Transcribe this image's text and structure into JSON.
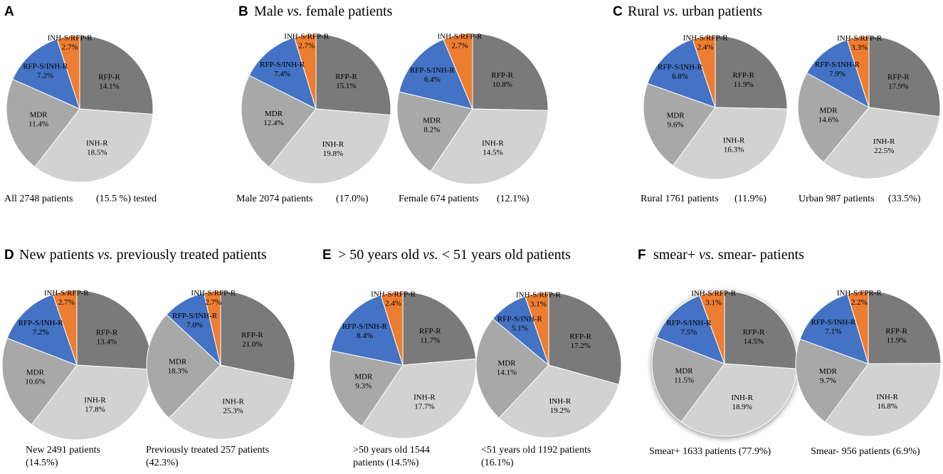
{
  "chart_data": {
    "type": "pie",
    "categories": [
      "RFP-R",
      "INH-R",
      "MDR",
      "RFP-S/INH-R",
      "INH-S/RFP-R"
    ],
    "colors": {
      "RFP-R": "#7a7a7a",
      "INH-R": "#d2d2d2",
      "MDR": "#a8a8a8",
      "RFP-S/INH-R": "#4472c4",
      "INH-S/RFP-R": "#ed7d31"
    },
    "panels": [
      {
        "letter": "A",
        "title_parts": [],
        "pies": [
          {
            "caption_lines": [
              "All 2748 patients",
              "(15.5 %) tested"
            ],
            "slices": [
              {
                "name": "RFP-R",
                "label": "RFP-R",
                "value": "14.1%"
              },
              {
                "name": "INH-R",
                "label": "INH-R",
                "value": "18.5%"
              },
              {
                "name": "MDR",
                "label": "MDR",
                "value": "11.4%"
              },
              {
                "name": "RFP-S/INH-R",
                "label": "RFP-S/INH-R",
                "value": "7.2%"
              },
              {
                "name": "INH-S/RFP-R",
                "label": "INH-S/RFP-R",
                "value": "2.7%"
              }
            ]
          }
        ]
      },
      {
        "letter": "B",
        "title_parts": [
          "Male ",
          "vs.",
          " female patients"
        ],
        "pies": [
          {
            "caption_lines": [
              "Male 2074 patients",
              "(17.0%)"
            ],
            "slices": [
              {
                "name": "RFP-R",
                "label": "RFP-R",
                "value": "15.1%"
              },
              {
                "name": "INH-R",
                "label": "INH-R",
                "value": "19.8%"
              },
              {
                "name": "MDR",
                "label": "MDR",
                "value": "12.4%"
              },
              {
                "name": "RFP-S/INH-R",
                "label": "RFP-S/INH-R",
                "value": "7.4%"
              },
              {
                "name": "INH-S/RFP-R",
                "label": "INH-S/RFP-R",
                "value": "2.7%"
              }
            ]
          },
          {
            "caption_lines": [
              "Female 674 patients",
              "(12.1%)"
            ],
            "slices": [
              {
                "name": "RFP-R",
                "label": "RFP-R",
                "value": "10.8%"
              },
              {
                "name": "INH-R",
                "label": "INH-R",
                "value": "14.5%"
              },
              {
                "name": "MDR",
                "label": "MDR",
                "value": "8.2%"
              },
              {
                "name": "RFP-S/INH-R",
                "label": "RFP-S/INH-R",
                "value": "6.4%"
              },
              {
                "name": "INH-S/RFP-R",
                "label": "INH-S/RFP-R",
                "value": "2.7%"
              }
            ]
          }
        ]
      },
      {
        "letter": "C",
        "title_parts": [
          "Rural ",
          "vs.",
          " urban patients"
        ],
        "pies": [
          {
            "caption_lines": [
              "Rural 1761 patients",
              "(11.9%)"
            ],
            "slices": [
              {
                "name": "RFP-R",
                "label": "RFP-R",
                "value": "11.9%"
              },
              {
                "name": "INH-R",
                "label": "INH-R",
                "value": "16.3%"
              },
              {
                "name": "MDR",
                "label": "MDR",
                "value": "9.6%"
              },
              {
                "name": "RFP-S/INH-R",
                "label": "RFP-S/INH-R",
                "value": "6.8%"
              },
              {
                "name": "INH-S/RFP-R",
                "label": "INH-S/RFP-R",
                "value": "2.4%"
              }
            ]
          },
          {
            "caption_lines": [
              "Urban 987 patients",
              "(33.5%)"
            ],
            "slices": [
              {
                "name": "RFP-R",
                "label": "RFP-R",
                "value": "17.9%"
              },
              {
                "name": "INH-R",
                "label": "INH-R",
                "value": "22.5%"
              },
              {
                "name": "MDR",
                "label": "MDR",
                "value": "14.6%"
              },
              {
                "name": "RFP-S/INH-R",
                "label": "RFP-S/INH-R",
                "value": "7.9%"
              },
              {
                "name": "INH-S/RFP-R",
                "label": "INH-S/RFP-R",
                "value": "3.3%"
              }
            ]
          }
        ]
      },
      {
        "letter": "D",
        "title_parts": [
          "New patients ",
          "vs.",
          " previously treated patients"
        ],
        "pies": [
          {
            "caption_lines": [
              "New 2491 patients",
              "(14.5%)"
            ],
            "slices": [
              {
                "name": "RFP-R",
                "label": "RFP-R",
                "value": "13.4%"
              },
              {
                "name": "INH-R",
                "label": "INH-R",
                "value": "17.8%"
              },
              {
                "name": "MDR",
                "label": "MDR",
                "value": "10.6%"
              },
              {
                "name": "RFP-S/INH-R",
                "label": "RFP-S/INH-R",
                "value": "7.2%"
              },
              {
                "name": "INH-S/RFP-R",
                "label": "INH-S/RFP-R",
                "value": "2.7%"
              }
            ]
          },
          {
            "caption_lines": [
              "Previously treated 257 patients",
              "(42.3%)"
            ],
            "slices": [
              {
                "name": "RFP-R",
                "label": "RFP-R",
                "value": "21.0%"
              },
              {
                "name": "INH-R",
                "label": "INH-R",
                "value": "25.3%"
              },
              {
                "name": "MDR",
                "label": "MDR",
                "value": "18.3%"
              },
              {
                "name": "RFP-S/INH-R",
                "label": "RFP-S/INH-R",
                "value": "7.0%"
              },
              {
                "name": "INH-S/RFP-R",
                "label": "INH-S/RFP-R",
                "value": "2.7%"
              }
            ]
          }
        ]
      },
      {
        "letter": "E",
        "title_parts": [
          "> 50 years old ",
          "vs.",
          " < 51 years old patients"
        ],
        "pies": [
          {
            "caption_lines": [
              ">50 years old 1544",
              "patients (14.5%)"
            ],
            "slices": [
              {
                "name": "RFP-R",
                "label": "RFP-R",
                "value": "11.7%"
              },
              {
                "name": "INH-R",
                "label": "INH-R",
                "value": "17.7%"
              },
              {
                "name": "MDR",
                "label": "MDR",
                "value": "9.3%"
              },
              {
                "name": "RFP-S/INH-R",
                "label": "RFP-S/INH-R",
                "value": "8.4%"
              },
              {
                "name": "INH-S/RFP-R",
                "label": "INH-S/RFP-R",
                "value": "2.4%"
              }
            ]
          },
          {
            "caption_lines": [
              "<51 years old 1192 patients",
              "(16.1%)"
            ],
            "slices": [
              {
                "name": "RFP-R",
                "label": "RFP-R",
                "value": "17.2%"
              },
              {
                "name": "INH-R",
                "label": "INH-R",
                "value": "19.2%"
              },
              {
                "name": "MDR",
                "label": "MDR",
                "value": "14.1%"
              },
              {
                "name": "RFP-S/INH-R",
                "label": "RFP-S/INH-R",
                "value": "5.1%"
              },
              {
                "name": "INH-S/RFP-R",
                "label": "INH-S/RFP-R",
                "value": "3.1%"
              }
            ]
          }
        ]
      },
      {
        "letter": "F",
        "title_parts": [
          "smear+ ",
          "vs.",
          " smear- patients"
        ],
        "pies": [
          {
            "caption_lines": [
              "Smear+ 1633 patients (77.9%)"
            ],
            "slices": [
              {
                "name": "RFP-R",
                "label": "RFP-R",
                "value": "14.5%"
              },
              {
                "name": "INH-R",
                "label": "INH-R",
                "value": "18.9%"
              },
              {
                "name": "MDR",
                "label": "MDR",
                "value": "11.5%"
              },
              {
                "name": "RFP-S/INH-R",
                "label": "RFP-S/INH-R",
                "value": "7.5%"
              },
              {
                "name": "INH-S/RFP-R",
                "label": "INH-S/RFP-R",
                "value": "3.1%"
              }
            ]
          },
          {
            "caption_lines": [
              "Smear- 956 patients (6.9%)"
            ],
            "slices": [
              {
                "name": "RFP-R",
                "label": "RFP-R",
                "value": "11.9%"
              },
              {
                "name": "INH-R",
                "label": "INH-R",
                "value": "16.8%"
              },
              {
                "name": "MDR",
                "label": "MDR",
                "value": "9.7%"
              },
              {
                "name": "RFP-S/INH-R",
                "label": "RFP-S/INH-R",
                "value": "7.1%"
              },
              {
                "name": "INH-S/FPR-R",
                "label": "INH-S/FPR-R",
                "value": "2.2%"
              }
            ]
          }
        ]
      }
    ]
  }
}
